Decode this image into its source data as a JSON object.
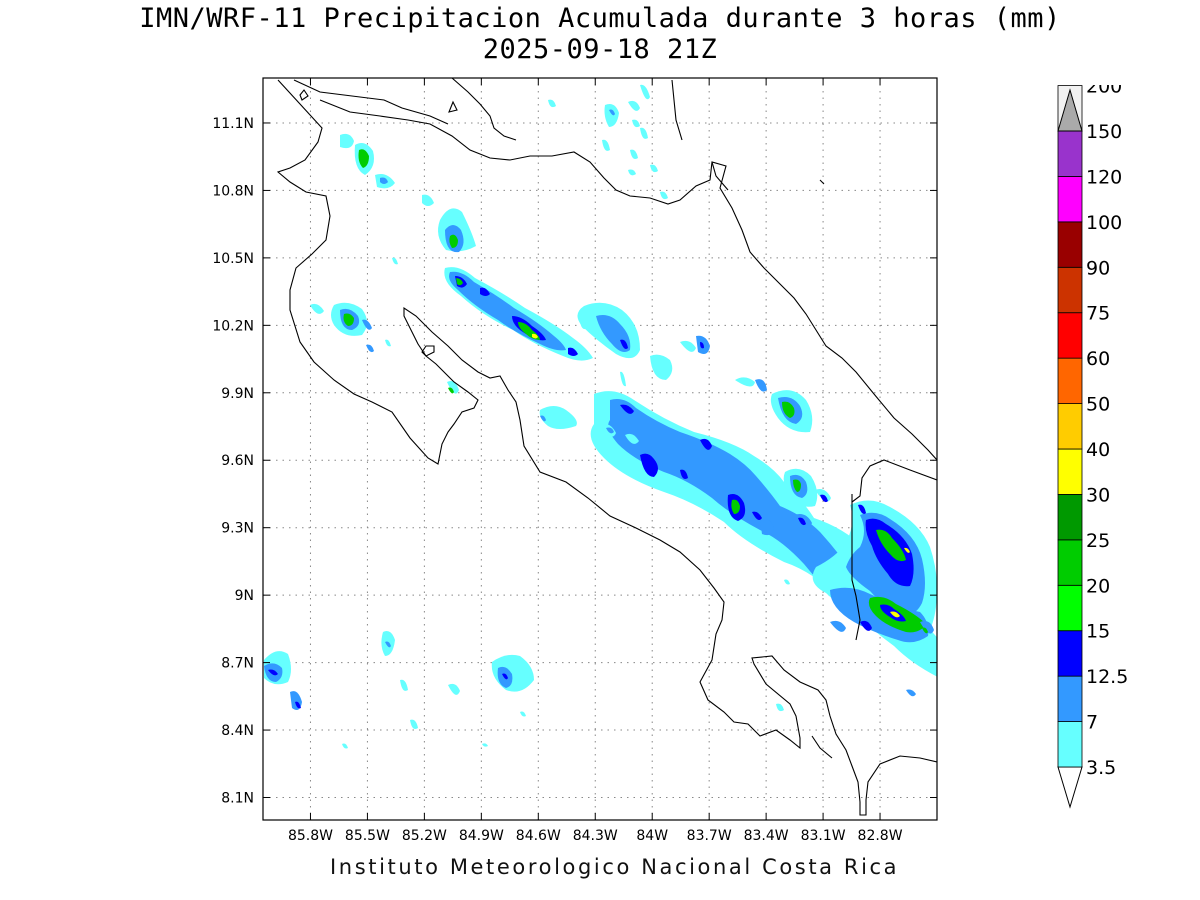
{
  "title_line1": "IMN/WRF-11 Precipitacion Acumulada durante 3 horas (mm)",
  "title_line2": "2025-09-18 21Z",
  "footer": "Instituto Meteorologico Nacional Costa Rica",
  "map": {
    "lon_range": [
      -86.05,
      -82.5
    ],
    "lat_range": [
      8.0,
      11.3
    ],
    "lon_ticks": [
      {
        "value": -85.8,
        "label": "85.8W"
      },
      {
        "value": -85.5,
        "label": "85.5W"
      },
      {
        "value": -85.2,
        "label": "85.2W"
      },
      {
        "value": -84.9,
        "label": "84.9W"
      },
      {
        "value": -84.6,
        "label": "84.6W"
      },
      {
        "value": -84.3,
        "label": "84.3W"
      },
      {
        "value": -84.0,
        "label": "84W"
      },
      {
        "value": -83.7,
        "label": "83.7W"
      },
      {
        "value": -83.4,
        "label": "83.4W"
      },
      {
        "value": -83.1,
        "label": "83.1W"
      },
      {
        "value": -82.8,
        "label": "82.8W"
      }
    ],
    "lat_ticks": [
      {
        "value": 11.1,
        "label": "11.1N"
      },
      {
        "value": 10.8,
        "label": "10.8N"
      },
      {
        "value": 10.5,
        "label": "10.5N"
      },
      {
        "value": 10.2,
        "label": "10.2N"
      },
      {
        "value": 9.9,
        "label": "9.9N"
      },
      {
        "value": 9.6,
        "label": "9.6N"
      },
      {
        "value": 9.3,
        "label": "9.3N"
      },
      {
        "value": 9.0,
        "label": "9N"
      },
      {
        "value": 8.7,
        "label": "8.7N"
      },
      {
        "value": 8.4,
        "label": "8.4N"
      },
      {
        "value": 8.1,
        "label": "8.1N"
      }
    ],
    "gridlines": true
  },
  "legend": {
    "levels": [
      {
        "label": "3.5",
        "color": "#66ffff"
      },
      {
        "label": "7",
        "color": "#3399ff"
      },
      {
        "label": "12.5",
        "color": "#0000ff"
      },
      {
        "label": "15",
        "color": "#00ff00"
      },
      {
        "label": "20",
        "color": "#00cc00"
      },
      {
        "label": "25",
        "color": "#009900"
      },
      {
        "label": "30",
        "color": "#ffff00"
      },
      {
        "label": "40",
        "color": "#ffcc00"
      },
      {
        "label": "50",
        "color": "#ff6600"
      },
      {
        "label": "60",
        "color": "#ff0000"
      },
      {
        "label": "75",
        "color": "#cc3300"
      },
      {
        "label": "90",
        "color": "#990000"
      },
      {
        "label": "100",
        "color": "#ff00ff"
      },
      {
        "label": "120",
        "color": "#9933cc"
      },
      {
        "label": "150",
        "color": "#f2f2f2"
      },
      {
        "label": "200",
        "color": "#aaaaaa"
      }
    ]
  }
}
